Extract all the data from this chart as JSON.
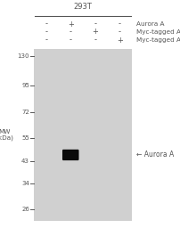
{
  "title": "293T",
  "mw_label": "MW\n(kDa)",
  "lane_labels_row1": [
    "-",
    "+",
    "-",
    "-"
  ],
  "lane_labels_row2": [
    "-",
    "-",
    "+",
    "-"
  ],
  "lane_labels_row3": [
    "-",
    "-",
    "-",
    "+"
  ],
  "row_annotations": [
    "Aurora A",
    "Myc-tagged Aurora B",
    "Myc-tagged Aurora C"
  ],
  "mw_ticks": [
    130,
    95,
    72,
    55,
    43,
    34,
    26
  ],
  "gel_bg_color": "#d0d0d0",
  "band_color": "#0a0a0a",
  "band_lane": 1,
  "band_mw": 46,
  "aurora_a_label": "← Aurora A",
  "figure_bg": "#ffffff",
  "lane_count": 4,
  "mw_log_min": 1.362,
  "mw_log_max": 2.146,
  "font_color": "#555555",
  "tick_font_size": 5.0,
  "label_font_size": 5.2,
  "header_font_size": 5.5,
  "title_font_size": 6.0,
  "annotation_font_size": 5.5
}
